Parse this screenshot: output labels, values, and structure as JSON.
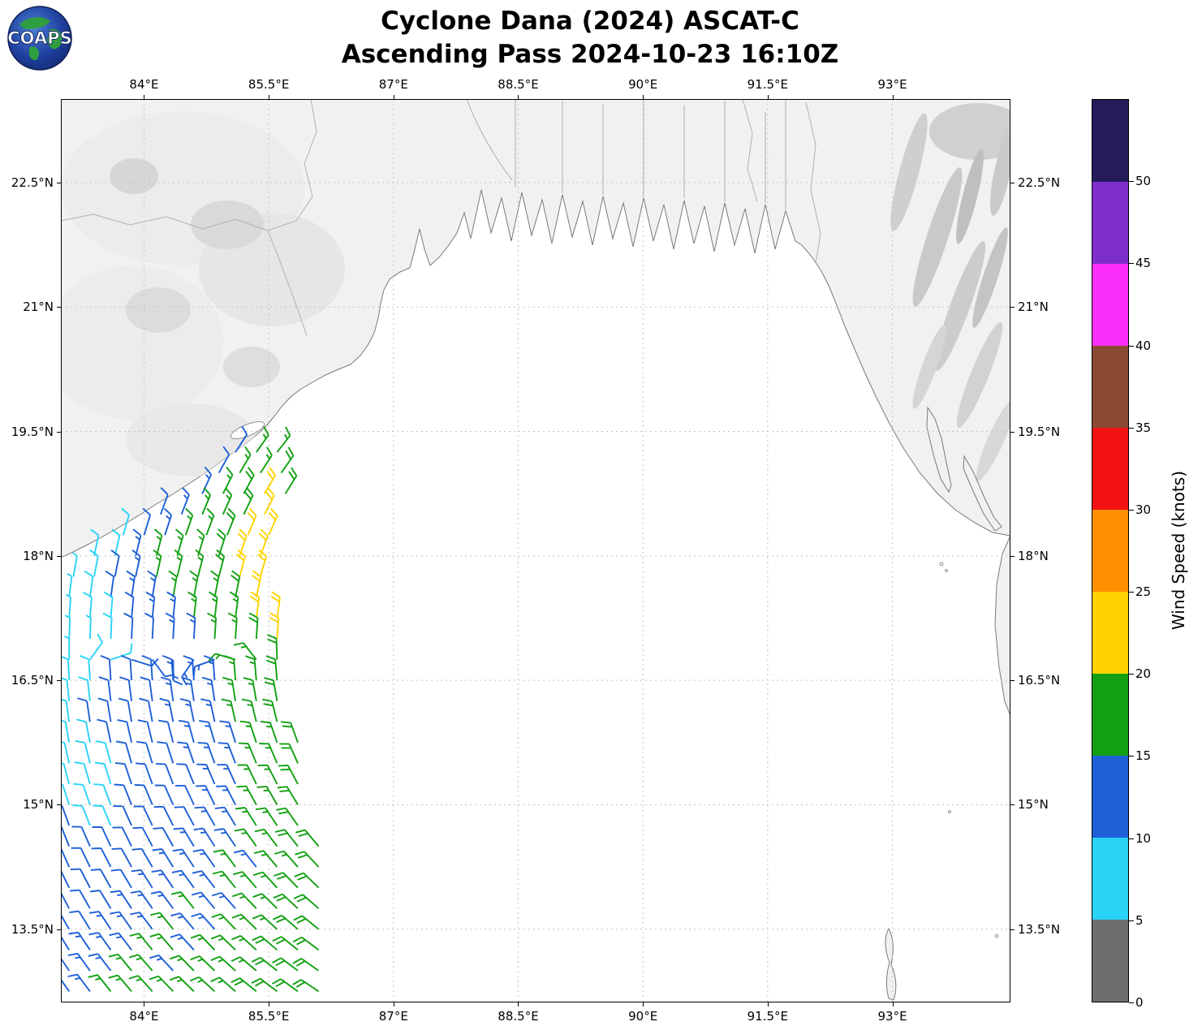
{
  "title": {
    "line1": "Cyclone Dana (2024) ASCAT-C",
    "line2": "Ascending Pass 2024-10-23 16:10Z"
  },
  "logo": {
    "text": "COAPS"
  },
  "colorbar": {
    "label": "Wind Speed (knots)",
    "unit": "knots",
    "tick_values": [
      0,
      5,
      10,
      15,
      20,
      25,
      30,
      35,
      40,
      45,
      50
    ],
    "max_value": 55,
    "segments": [
      {
        "min": 0,
        "max": 5,
        "color": "#6e6e6e"
      },
      {
        "min": 5,
        "max": 10,
        "color": "#29d3f5"
      },
      {
        "min": 10,
        "max": 15,
        "color": "#1d5fd6"
      },
      {
        "min": 15,
        "max": 20,
        "color": "#12a012"
      },
      {
        "min": 20,
        "max": 25,
        "color": "#ffd300"
      },
      {
        "min": 25,
        "max": 30,
        "color": "#ff9000"
      },
      {
        "min": 30,
        "max": 35,
        "color": "#f31212"
      },
      {
        "min": 35,
        "max": 40,
        "color": "#8a4a32"
      },
      {
        "min": 40,
        "max": 45,
        "color": "#fb2efb"
      },
      {
        "min": 45,
        "max": 50,
        "color": "#7e2ecc"
      },
      {
        "min": 50,
        "max": 55,
        "color": "#251a5c"
      }
    ]
  },
  "axes": {
    "lon_min": 83.0,
    "lon_max": 94.42,
    "lat_min": 12.617,
    "lat_max": 23.507,
    "lon_ticks": [
      {
        "value": 84,
        "label": "84°E"
      },
      {
        "value": 85.5,
        "label": "85.5°E"
      },
      {
        "value": 87,
        "label": "87°E"
      },
      {
        "value": 88.5,
        "label": "88.5°E"
      },
      {
        "value": 90,
        "label": "90°E"
      },
      {
        "value": 91.5,
        "label": "91.5°E"
      },
      {
        "value": 93,
        "label": "93°E"
      }
    ],
    "lat_ticks": [
      {
        "value": 22.5,
        "label": "22.5°N"
      },
      {
        "value": 21,
        "label": "21°N"
      },
      {
        "value": 19.5,
        "label": "19.5°N"
      },
      {
        "value": 18,
        "label": "18°N"
      },
      {
        "value": 16.5,
        "label": "16.5°N"
      },
      {
        "value": 15,
        "label": "15°N"
      },
      {
        "value": 13.5,
        "label": "13.5°N"
      }
    ]
  },
  "chart_data": {
    "type": "wind-barb-map",
    "speed_units": "knots",
    "barb_spacing_deg": 0.25,
    "rows": [
      {
        "lat": 19.25,
        "lon0": 85.1,
        "dir": [
          33,
          38
        ],
        "speeds": [
          12,
          17,
          17
        ]
      },
      {
        "lat": 19.0,
        "lon0": 84.9,
        "dir": [
          29,
          35
        ],
        "speeds": [
          12,
          17,
          17,
          18
        ]
      },
      {
        "lat": 18.75,
        "lon0": 84.7,
        "dir": [
          25,
          32
        ],
        "speeds": [
          13,
          17,
          18,
          22,
          18
        ]
      },
      {
        "lat": 18.5,
        "lon0": 84.2,
        "dir": [
          20,
          27
        ],
        "speeds": [
          12,
          13,
          17,
          17,
          18,
          22
        ]
      },
      {
        "lat": 18.25,
        "lon0": 83.75,
        "dir": [
          16,
          24
        ],
        "speeds": [
          8,
          12,
          13,
          17,
          17,
          18,
          22,
          22
        ]
      },
      {
        "lat": 18.0,
        "lon0": 83.4,
        "dir": [
          12,
          20
        ],
        "speeds": [
          8,
          8,
          13,
          17,
          17,
          17,
          18,
          22,
          22
        ]
      },
      {
        "lat": 17.75,
        "lon0": 83.15,
        "dir": [
          10,
          16
        ],
        "speeds": [
          7,
          8,
          12,
          13,
          17,
          17,
          17,
          18,
          22,
          22
        ]
      },
      {
        "lat": 17.5,
        "lon0": 83.1,
        "dir": [
          7,
          12
        ],
        "speeds": [
          7,
          8,
          12,
          13,
          13,
          17,
          17,
          17,
          18,
          22
        ]
      },
      {
        "lat": 17.25,
        "lon0": 83.1,
        "dir": [
          4,
          8
        ],
        "speeds": [
          7,
          8,
          8,
          12,
          13,
          13,
          17,
          17,
          17,
          22,
          22
        ]
      },
      {
        "lat": 17.0,
        "lon0": 83.1,
        "dir": [
          2,
          4
        ],
        "speeds": [
          7,
          7,
          8,
          12,
          12,
          13,
          13,
          17,
          17,
          18,
          22
        ]
      },
      {
        "lat": 16.75,
        "lon0": 83.1,
        "dir": [
          0,
          358
        ],
        "speeds": [
          7,
          8,
          8,
          12,
          12,
          13,
          13,
          13,
          17,
          17,
          18
        ]
      },
      {
        "lat": 16.5,
        "lon0": 83.1,
        "dir": [
          357,
          355
        ],
        "speeds": [
          8,
          8,
          12,
          12,
          12,
          13,
          13,
          13,
          17,
          17,
          18
        ]
      },
      {
        "lat": 16.25,
        "lon0": 83.1,
        "dir": [
          354,
          350
        ],
        "speeds": [
          8,
          8,
          12,
          12,
          12,
          13,
          13,
          13,
          17,
          17,
          18
        ]
      },
      {
        "lat": 16.0,
        "lon0": 83.1,
        "dir": [
          352,
          346
        ],
        "speeds": [
          8,
          12,
          12,
          12,
          12,
          13,
          13,
          13,
          17,
          17,
          18
        ]
      },
      {
        "lat": 15.75,
        "lon0": 83.1,
        "dir": [
          350,
          340
        ],
        "speeds": [
          8,
          8,
          12,
          12,
          12,
          12,
          13,
          13,
          13,
          17,
          17,
          18
        ]
      },
      {
        "lat": 15.5,
        "lon0": 83.1,
        "dir": [
          347,
          336
        ],
        "speeds": [
          8,
          8,
          8,
          12,
          12,
          12,
          13,
          13,
          13,
          17,
          17,
          18
        ]
      },
      {
        "lat": 15.25,
        "lon0": 83.1,
        "dir": [
          345,
          332
        ],
        "speeds": [
          8,
          8,
          8,
          12,
          12,
          12,
          12,
          13,
          13,
          17,
          17,
          18
        ]
      },
      {
        "lat": 15.0,
        "lon0": 83.1,
        "dir": [
          342,
          329
        ],
        "speeds": [
          8,
          8,
          8,
          12,
          12,
          12,
          12,
          13,
          13,
          17,
          17,
          18
        ]
      },
      {
        "lat": 14.75,
        "lon0": 83.1,
        "dir": [
          340,
          325
        ],
        "speeds": [
          12,
          8,
          8,
          12,
          12,
          12,
          12,
          13,
          13,
          17,
          17,
          18
        ]
      },
      {
        "lat": 14.5,
        "lon0": 83.1,
        "dir": [
          338,
          320
        ],
        "speeds": [
          12,
          12,
          12,
          12,
          12,
          12,
          13,
          13,
          13,
          17,
          17,
          18,
          18
        ]
      },
      {
        "lat": 14.25,
        "lon0": 83.1,
        "dir": [
          336,
          317
        ],
        "speeds": [
          12,
          12,
          12,
          12,
          12,
          13,
          13,
          13,
          17,
          13,
          17,
          17,
          18
        ]
      },
      {
        "lat": 14.0,
        "lon0": 83.1,
        "dir": [
          334,
          314
        ],
        "speeds": [
          12,
          12,
          12,
          12,
          13,
          13,
          13,
          13,
          17,
          17,
          17,
          18,
          18
        ]
      },
      {
        "lat": 13.75,
        "lon0": 83.1,
        "dir": [
          332,
          311
        ],
        "speeds": [
          12,
          12,
          12,
          13,
          13,
          13,
          17,
          13,
          13,
          17,
          17,
          18,
          18
        ]
      },
      {
        "lat": 13.5,
        "lon0": 83.1,
        "dir": [
          330,
          309
        ],
        "speeds": [
          12,
          12,
          13,
          13,
          13,
          17,
          13,
          13,
          17,
          17,
          17,
          18,
          18
        ]
      },
      {
        "lat": 13.25,
        "lon0": 83.1,
        "dir": [
          328,
          307
        ],
        "speeds": [
          12,
          13,
          13,
          13,
          17,
          17,
          13,
          17,
          17,
          17,
          18,
          18,
          18
        ]
      },
      {
        "lat": 13.0,
        "lon0": 83.1,
        "dir": [
          326,
          305
        ],
        "speeds": [
          13,
          13,
          13,
          17,
          17,
          13,
          17,
          17,
          17,
          17,
          18,
          18,
          18
        ]
      },
      {
        "lat": 12.75,
        "lon0": 83.1,
        "dir": [
          325,
          304
        ],
        "speeds": [
          13,
          13,
          17,
          17,
          17,
          17,
          17,
          17,
          17,
          18,
          18,
          18,
          18
        ]
      }
    ]
  }
}
